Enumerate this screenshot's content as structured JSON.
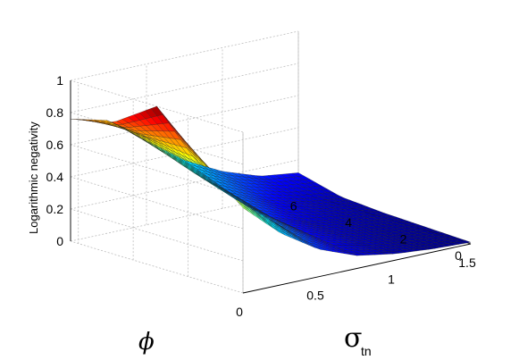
{
  "chart_data": {
    "type": "surface",
    "zlabel": "Logarithmic negativity",
    "xlabel": "σ",
    "xlabel_sub": "tn",
    "ylabel": "ϕ",
    "xlim": [
      0,
      1.5
    ],
    "ylim": [
      0,
      6.2832
    ],
    "zlim": [
      0,
      1
    ],
    "x_ticks": [
      "0",
      "0.5",
      "1",
      "1.5"
    ],
    "y_ticks": [
      "0",
      "2",
      "4",
      "6"
    ],
    "z_ticks": [
      "0",
      "0.2",
      "0.4",
      "0.6",
      "0.8",
      "1"
    ],
    "x_tick_values": [
      0,
      0.5,
      1,
      1.5
    ],
    "y_tick_values": [
      0,
      2,
      4,
      6
    ],
    "z_tick_values": [
      0,
      0.2,
      0.4,
      0.6,
      0.8,
      1
    ],
    "grid": true,
    "colormap": "jet",
    "sigma_samples": [
      0,
      0.25,
      0.5,
      0.75,
      1.0,
      1.25,
      1.5
    ],
    "phi_samples": [
      0,
      1.5708,
      3.1416,
      4.7124,
      6.2832
    ],
    "z": [
      [
        0.53,
        0.32,
        0.17,
        0.08,
        0.04,
        0.02,
        0.01
      ],
      [
        0.75,
        0.47,
        0.25,
        0.12,
        0.06,
        0.03,
        0.02
      ],
      [
        1.0,
        0.62,
        0.33,
        0.16,
        0.08,
        0.05,
        0.03
      ],
      [
        0.82,
        0.66,
        0.42,
        0.24,
        0.14,
        0.08,
        0.05
      ],
      [
        0.76,
        0.7,
        0.52,
        0.35,
        0.23,
        0.15,
        0.12
      ]
    ]
  }
}
